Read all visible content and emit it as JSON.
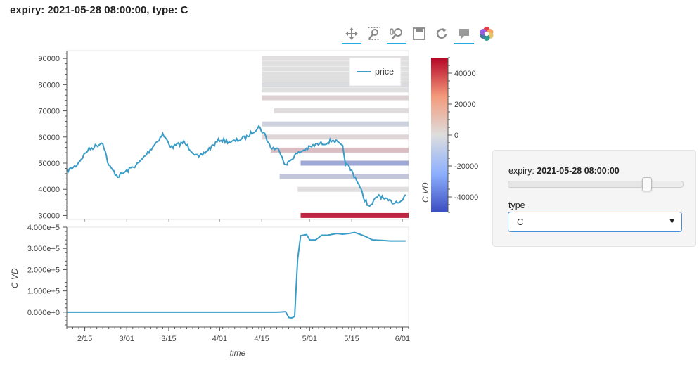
{
  "header": {
    "title": "expiry: 2021-05-28 08:00:00, type: C"
  },
  "toolbar": {
    "tools": [
      {
        "name": "pan-icon",
        "active": true
      },
      {
        "name": "box-zoom-icon",
        "active": false
      },
      {
        "name": "wheel-zoom-icon",
        "active": true
      },
      {
        "name": "save-icon",
        "active": false
      },
      {
        "name": "reset-icon",
        "active": false
      },
      {
        "name": "hover-icon",
        "active": true
      },
      {
        "name": "bokeh-logo-icon",
        "active": false
      }
    ]
  },
  "widgets": {
    "expiry_label": "expiry:",
    "expiry_value": "2021-05-28 08:00:00",
    "slider_fraction": 0.79,
    "type_label": "type",
    "type_selected": "C"
  },
  "colors": {
    "line": "#3a9cc7",
    "cmap_low": "#3a4cc0",
    "cmap_mid": "#dddddd",
    "cmap_high": "#b40426"
  },
  "chart_data": [
    {
      "type": "line",
      "legend": [
        "price"
      ],
      "ylim": [
        28500,
        93000
      ],
      "yticks": [
        30000,
        40000,
        50000,
        60000,
        70000,
        80000,
        90000
      ],
      "x_range": [
        "2021-02-09",
        "2021-06-03"
      ],
      "series": [
        {
          "name": "price",
          "x": [
            "2021-02-09",
            "2021-02-12",
            "2021-02-16",
            "2021-02-21",
            "2021-02-23",
            "2021-02-26",
            "2021-03-01",
            "2021-03-05",
            "2021-03-08",
            "2021-03-13",
            "2021-03-16",
            "2021-03-20",
            "2021-03-25",
            "2021-03-28",
            "2021-04-01",
            "2021-04-05",
            "2021-04-10",
            "2021-04-14",
            "2021-04-16",
            "2021-04-18",
            "2021-04-21",
            "2021-04-23",
            "2021-04-26",
            "2021-04-29",
            "2021-05-03",
            "2021-05-07",
            "2021-05-09",
            "2021-05-12",
            "2021-05-13",
            "2021-05-15",
            "2021-05-17",
            "2021-05-19",
            "2021-05-21",
            "2021-05-24",
            "2021-05-26",
            "2021-05-29",
            "2021-06-01",
            "2021-06-02"
          ],
          "y": [
            47000,
            49000,
            55000,
            58000,
            49000,
            45000,
            47000,
            50000,
            54000,
            61000,
            56000,
            58000,
            52000,
            55000,
            59000,
            58000,
            60000,
            64000,
            61000,
            56000,
            55000,
            49000,
            53000,
            55000,
            57000,
            58000,
            59000,
            56000,
            50000,
            47000,
            43000,
            37000,
            33000,
            38000,
            36000,
            35000,
            36000,
            38000
          ]
        }
      ],
      "heatmap": {
        "colorbar_label": "C VD",
        "colorbar_ticks": [
          40000,
          20000,
          0,
          -20000,
          -40000
        ],
        "color_range": [
          -50000,
          50000
        ],
        "bands": [
          {
            "strike": 90000,
            "start": "2021-04-15",
            "end": "2021-06-03",
            "cvd": 600
          },
          {
            "strike": 88000,
            "start": "2021-04-15",
            "end": "2021-06-03",
            "cvd": 500
          },
          {
            "strike": 86000,
            "start": "2021-04-15",
            "end": "2021-06-03",
            "cvd": 400
          },
          {
            "strike": 84000,
            "start": "2021-04-15",
            "end": "2021-06-03",
            "cvd": 300
          },
          {
            "strike": 82000,
            "start": "2021-04-15",
            "end": "2021-06-03",
            "cvd": 200
          },
          {
            "strike": 80000,
            "start": "2021-04-15",
            "end": "2021-06-03",
            "cvd": -2000
          },
          {
            "strike": 78000,
            "start": "2021-04-15",
            "end": "2021-06-03",
            "cvd": -500
          },
          {
            "strike": 75000,
            "start": "2021-04-15",
            "end": "2021-06-03",
            "cvd": 4000
          },
          {
            "strike": 70000,
            "start": "2021-04-19",
            "end": "2021-06-03",
            "cvd": 1500
          },
          {
            "strike": 65000,
            "start": "2021-04-15",
            "end": "2021-06-03",
            "cvd": -6000
          },
          {
            "strike": 60000,
            "start": "2021-04-15",
            "end": "2021-06-03",
            "cvd": 2500
          },
          {
            "strike": 55000,
            "start": "2021-04-18",
            "end": "2021-06-03",
            "cvd": 9000
          },
          {
            "strike": 50000,
            "start": "2021-04-28",
            "end": "2021-06-03",
            "cvd": -22000
          },
          {
            "strike": 45000,
            "start": "2021-04-21",
            "end": "2021-06-03",
            "cvd": -10000
          },
          {
            "strike": 40000,
            "start": "2021-04-27",
            "end": "2021-06-03",
            "cvd": 1000
          },
          {
            "strike": 30000,
            "start": "2021-04-28",
            "end": "2021-06-03",
            "cvd": 48000
          }
        ]
      }
    },
    {
      "type": "line",
      "ylabel": "C VD",
      "xlabel": "time",
      "ylim": [
        -70000,
        400000
      ],
      "yticks": [
        0,
        100000,
        200000,
        300000,
        400000
      ],
      "ytick_labels": [
        "0.000e+0",
        "1.000e+5",
        "2.000e+5",
        "3.000e+5",
        "4.000e+5"
      ],
      "xticks": [
        "2021-02-15",
        "2021-03-01",
        "2021-03-15",
        "2021-04-01",
        "2021-04-15",
        "2021-05-01",
        "2021-05-15",
        "2021-06-01"
      ],
      "xtick_labels": [
        "2/15",
        "3/01",
        "3/15",
        "4/01",
        "4/15",
        "5/01",
        "5/15",
        "6/01"
      ],
      "series": [
        {
          "name": "C VD",
          "x": [
            "2021-02-09",
            "2021-04-20",
            "2021-04-23",
            "2021-04-24",
            "2021-04-25",
            "2021-04-26",
            "2021-04-27",
            "2021-04-28",
            "2021-04-30",
            "2021-05-01",
            "2021-05-03",
            "2021-05-05",
            "2021-05-07",
            "2021-05-10",
            "2021-05-12",
            "2021-05-14",
            "2021-05-16",
            "2021-05-19",
            "2021-05-22",
            "2021-05-25",
            "2021-05-28",
            "2021-06-02"
          ],
          "y": [
            0,
            0,
            2000,
            -25000,
            -27000,
            -20000,
            250000,
            360000,
            365000,
            340000,
            340000,
            362000,
            362000,
            370000,
            367000,
            370000,
            375000,
            360000,
            340000,
            338000,
            335000,
            335000
          ]
        }
      ]
    }
  ]
}
